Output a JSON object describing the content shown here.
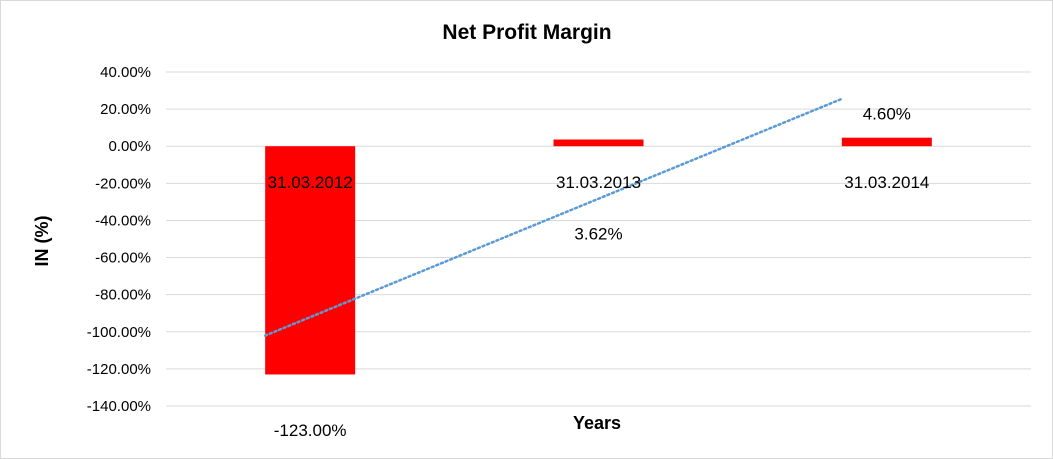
{
  "chart_data": {
    "type": "bar",
    "title": "Net Profit Margin",
    "xlabel": "Years",
    "ylabel": "IN (%)",
    "categories": [
      "31.03.2012",
      "31.03.2013",
      "31.03.2014"
    ],
    "series": [
      {
        "values": [
          -123.0,
          3.62,
          4.6
        ],
        "data_labels": [
          "-123.00%",
          "3.62%",
          "4.60%"
        ],
        "color": "#ff0000"
      }
    ],
    "trendline": {
      "type": "linear",
      "style": "dotted",
      "color": "#5b9bd5"
    },
    "ylim": [
      -140,
      40
    ],
    "yticks": [
      40,
      20,
      0,
      -20,
      -40,
      -60,
      -80,
      -100,
      -120,
      -140
    ],
    "ytick_labels": [
      "40.00%",
      "20.00%",
      "0.00%",
      "-20.00%",
      "-40.00%",
      "-60.00%",
      "-80.00%",
      "-100.00%",
      "-120.00%",
      "-140.00%"
    ],
    "grid": true,
    "legend": "none",
    "colors": {
      "bar": "#ff0000",
      "gridline": "#d9d9d9",
      "trendline": "#5b9bd5",
      "border": "#d9d9d9"
    }
  }
}
